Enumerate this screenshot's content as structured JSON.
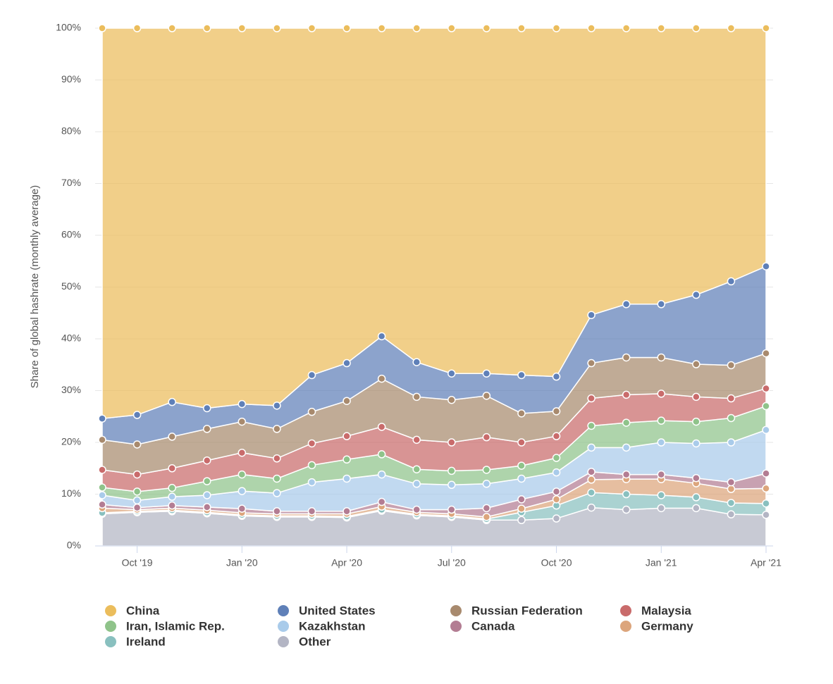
{
  "chart_data": {
    "type": "area",
    "stacked": true,
    "y_label": "Share of global hashrate (monthly average)",
    "categories": [
      null,
      "Oct '19",
      null,
      null,
      "Jan '20",
      null,
      null,
      "Apr '20",
      null,
      null,
      "Jul '20",
      null,
      null,
      "Oct '20",
      null,
      null,
      "Jan '21",
      null,
      null,
      "Apr '21"
    ],
    "ylim": [
      0,
      100
    ],
    "yticks": [
      {
        "value": 0,
        "label": "0%"
      },
      {
        "value": 10,
        "label": "10%"
      },
      {
        "value": 20,
        "label": "20%"
      },
      {
        "value": 30,
        "label": "30%"
      },
      {
        "value": 40,
        "label": "40%"
      },
      {
        "value": 50,
        "label": "50%"
      },
      {
        "value": 60,
        "label": "60%"
      },
      {
        "value": 70,
        "label": "70%"
      },
      {
        "value": 80,
        "label": "80%"
      },
      {
        "value": 90,
        "label": "90%"
      },
      {
        "value": 100,
        "label": "100%"
      }
    ],
    "grid": true,
    "series": [
      {
        "name": "China",
        "color": "#ebbd5c",
        "values": [
          75.4,
          74.7,
          72.2,
          73.4,
          72.6,
          72.9,
          67.0,
          64.7,
          59.5,
          64.5,
          66.7,
          66.7,
          67.0,
          67.3,
          55.4,
          53.3,
          53.3,
          51.5,
          48.9,
          46.0
        ]
      },
      {
        "name": "United States",
        "color": "#5f80b8",
        "values": [
          4.1,
          5.7,
          6.7,
          4.0,
          3.4,
          4.5,
          7.1,
          7.3,
          8.2,
          6.7,
          5.1,
          4.3,
          7.4,
          6.7,
          9.3,
          10.3,
          10.3,
          13.4,
          16.2,
          16.8
        ]
      },
      {
        "name": "Russian Federation",
        "color": "#a88a6e",
        "values": [
          5.8,
          5.8,
          6.1,
          6.1,
          6.0,
          5.7,
          6.1,
          6.8,
          9.3,
          8.3,
          8.2,
          8.0,
          5.6,
          4.8,
          6.8,
          7.2,
          7.0,
          6.3,
          6.4,
          6.8
        ]
      },
      {
        "name": "Malaysia",
        "color": "#c96b6b",
        "values": [
          3.4,
          3.3,
          3.8,
          4.0,
          4.2,
          3.9,
          4.2,
          4.5,
          5.3,
          5.7,
          5.5,
          6.3,
          4.5,
          4.2,
          5.3,
          5.4,
          5.2,
          4.8,
          3.8,
          3.4
        ]
      },
      {
        "name": "Iran, Islamic Rep.",
        "color": "#8fc38a",
        "values": [
          1.5,
          1.7,
          1.7,
          2.7,
          3.2,
          2.8,
          3.3,
          3.7,
          3.9,
          2.8,
          2.7,
          2.7,
          2.5,
          2.8,
          4.2,
          4.8,
          4.2,
          4.2,
          4.7,
          4.6
        ]
      },
      {
        "name": "Kazakhstan",
        "color": "#a9cbea",
        "values": [
          1.8,
          1.4,
          1.7,
          2.3,
          3.4,
          3.5,
          5.6,
          6.3,
          5.3,
          5.0,
          4.8,
          4.7,
          4.0,
          3.7,
          4.7,
          5.2,
          6.2,
          6.7,
          7.7,
          8.4
        ]
      },
      {
        "name": "Canada",
        "color": "#b37d93",
        "values": [
          0.7,
          0.4,
          0.5,
          0.6,
          0.8,
          0.5,
          0.5,
          0.5,
          0.9,
          0.5,
          0.8,
          1.7,
          1.8,
          1.5,
          1.5,
          0.9,
          0.9,
          1.0,
          1.3,
          2.9
        ]
      },
      {
        "name": "Germany",
        "color": "#dca57c",
        "values": [
          0.9,
          0.3,
          0.4,
          0.4,
          0.4,
          0.4,
          0.4,
          0.5,
          0.6,
          0.4,
          0.4,
          0.4,
          0.7,
          1.2,
          2.5,
          2.9,
          3.1,
          2.7,
          2.7,
          2.9
        ]
      },
      {
        "name": "Ireland",
        "color": "#89c0bf",
        "values": [
          0.2,
          0.2,
          0.2,
          0.2,
          0.2,
          0.2,
          0.2,
          0.2,
          0.2,
          0.2,
          0.2,
          0.2,
          1.5,
          2.5,
          2.9,
          3.0,
          2.5,
          2.1,
          2.2,
          2.2
        ]
      },
      {
        "name": "Other",
        "color": "#b3b5c4",
        "values": [
          6.2,
          6.5,
          6.7,
          6.3,
          5.8,
          5.6,
          5.6,
          5.5,
          6.8,
          5.9,
          5.6,
          5.0,
          5.0,
          5.3,
          7.4,
          7.0,
          7.3,
          7.3,
          6.1,
          6.0
        ]
      }
    ]
  }
}
